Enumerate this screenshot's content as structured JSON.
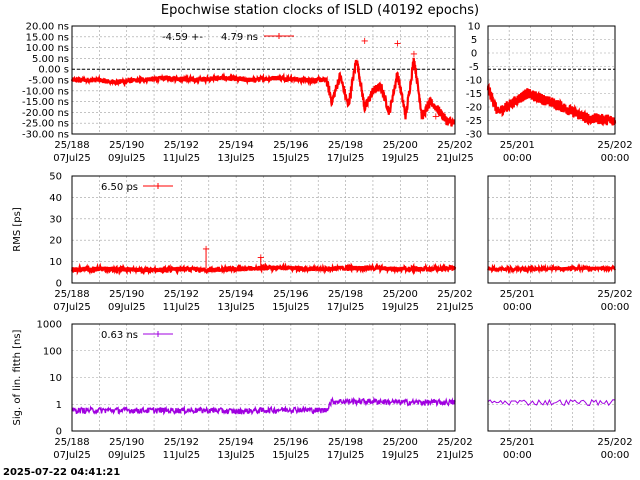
{
  "title": "Epochwise station clocks of ISLD (40192 epochs)",
  "timestamp": "2025-07-22 04:41:21",
  "colors": {
    "clock": "#ff0000",
    "rms": "#ff0000",
    "sig": "#a000e0",
    "grid": "#a0a0a0",
    "axis": "#000000"
  },
  "chart_data": [
    {
      "id": "clock",
      "type": "line",
      "ylabel": "",
      "ylim": [
        -30,
        20
      ],
      "yticks_main": [
        "20.00 ns",
        "15.00 ns",
        "10.00 ns",
        "5.00 ns",
        "0.00  s",
        "-5.00 ns",
        "-10.00 ns",
        "-15.00 ns",
        "-20.00 ns",
        "-25.00 ns",
        "-30.00 ns"
      ],
      "yticks_zoom": [
        "10",
        "5",
        "0",
        "-5",
        "-10",
        "-15",
        "-20",
        "-25",
        "-30"
      ],
      "legend": {
        "mean": "-4.59 +-",
        "sigma": "4.79 ns"
      },
      "xlim": [
        "25/188",
        "25/202"
      ],
      "series": [
        {
          "x": [
            188.0,
            189.0,
            189.5,
            190.5,
            191.5,
            192.5,
            193.5,
            194.5,
            195.5,
            196.5,
            197.3,
            197.5,
            197.8,
            198.1,
            198.4,
            198.7,
            199.0,
            199.3,
            199.6,
            199.9,
            200.2,
            200.5,
            200.8,
            201.1,
            201.4,
            201.7,
            202.0
          ],
          "y": [
            -5,
            -5,
            -6,
            -5,
            -4,
            -5,
            -4,
            -5,
            -4,
            -5,
            -5,
            -15,
            -3,
            -17,
            5,
            -18,
            -10,
            -8,
            -20,
            -2,
            -22,
            5,
            -22,
            -15,
            -19,
            -24,
            -25
          ]
        }
      ]
    },
    {
      "id": "rms",
      "type": "line",
      "ylabel": "RMS [ps]",
      "ylim": [
        0,
        50
      ],
      "yticks_main": [
        "50",
        "40",
        "30",
        "20",
        "10",
        "0"
      ],
      "legend": {
        "value": "6.50 ps"
      },
      "series": [
        {
          "x": [
            188.0,
            189.5,
            191.0,
            192.0,
            193.0,
            194.0,
            195.0,
            196.0,
            197.0,
            198.0,
            199.0,
            200.0,
            201.0,
            202.0
          ],
          "y": [
            6.5,
            6.5,
            6,
            6.5,
            6,
            6.5,
            7,
            7,
            6.5,
            7,
            7,
            6.5,
            6.5,
            7
          ]
        }
      ],
      "spikes": [
        {
          "x": 192.9,
          "y": 16
        },
        {
          "x": 194.9,
          "y": 12
        }
      ]
    },
    {
      "id": "sig",
      "type": "line",
      "ylabel": "Sig. of lin. fitth [ns]",
      "yscale": "log",
      "ylim": [
        0.1,
        1000
      ],
      "yticks_main": [
        "1000",
        "100",
        "10",
        "1",
        "0"
      ],
      "legend": {
        "value": "0.63 ns"
      },
      "series": [
        {
          "x": [
            188.0,
            189.0,
            190.0,
            191.0,
            192.0,
            193.0,
            194.0,
            195.0,
            196.0,
            197.0,
            197.3,
            197.5,
            198.0,
            199.0,
            200.0,
            201.0,
            202.0
          ],
          "y": [
            0.6,
            0.6,
            0.6,
            0.6,
            0.6,
            0.6,
            0.55,
            0.6,
            0.65,
            0.6,
            0.6,
            1.3,
            1.3,
            1.3,
            1.2,
            1.2,
            1.2
          ]
        }
      ]
    }
  ],
  "xticks_main": [
    {
      "top": "25/188",
      "bottom": "07Jul25"
    },
    {
      "top": "25/190",
      "bottom": "09Jul25"
    },
    {
      "top": "25/192",
      "bottom": "11Jul25"
    },
    {
      "top": "25/194",
      "bottom": "13Jul25"
    },
    {
      "top": "25/196",
      "bottom": "15Jul25"
    },
    {
      "top": "25/198",
      "bottom": "17Jul25"
    },
    {
      "top": "25/200",
      "bottom": "19Jul25"
    },
    {
      "top": "25/202",
      "bottom": "21Jul25"
    }
  ],
  "xticks_zoom": [
    {
      "top": "25/201",
      "bottom": "00:00"
    },
    {
      "top": "25/202",
      "bottom": "00:00"
    }
  ]
}
